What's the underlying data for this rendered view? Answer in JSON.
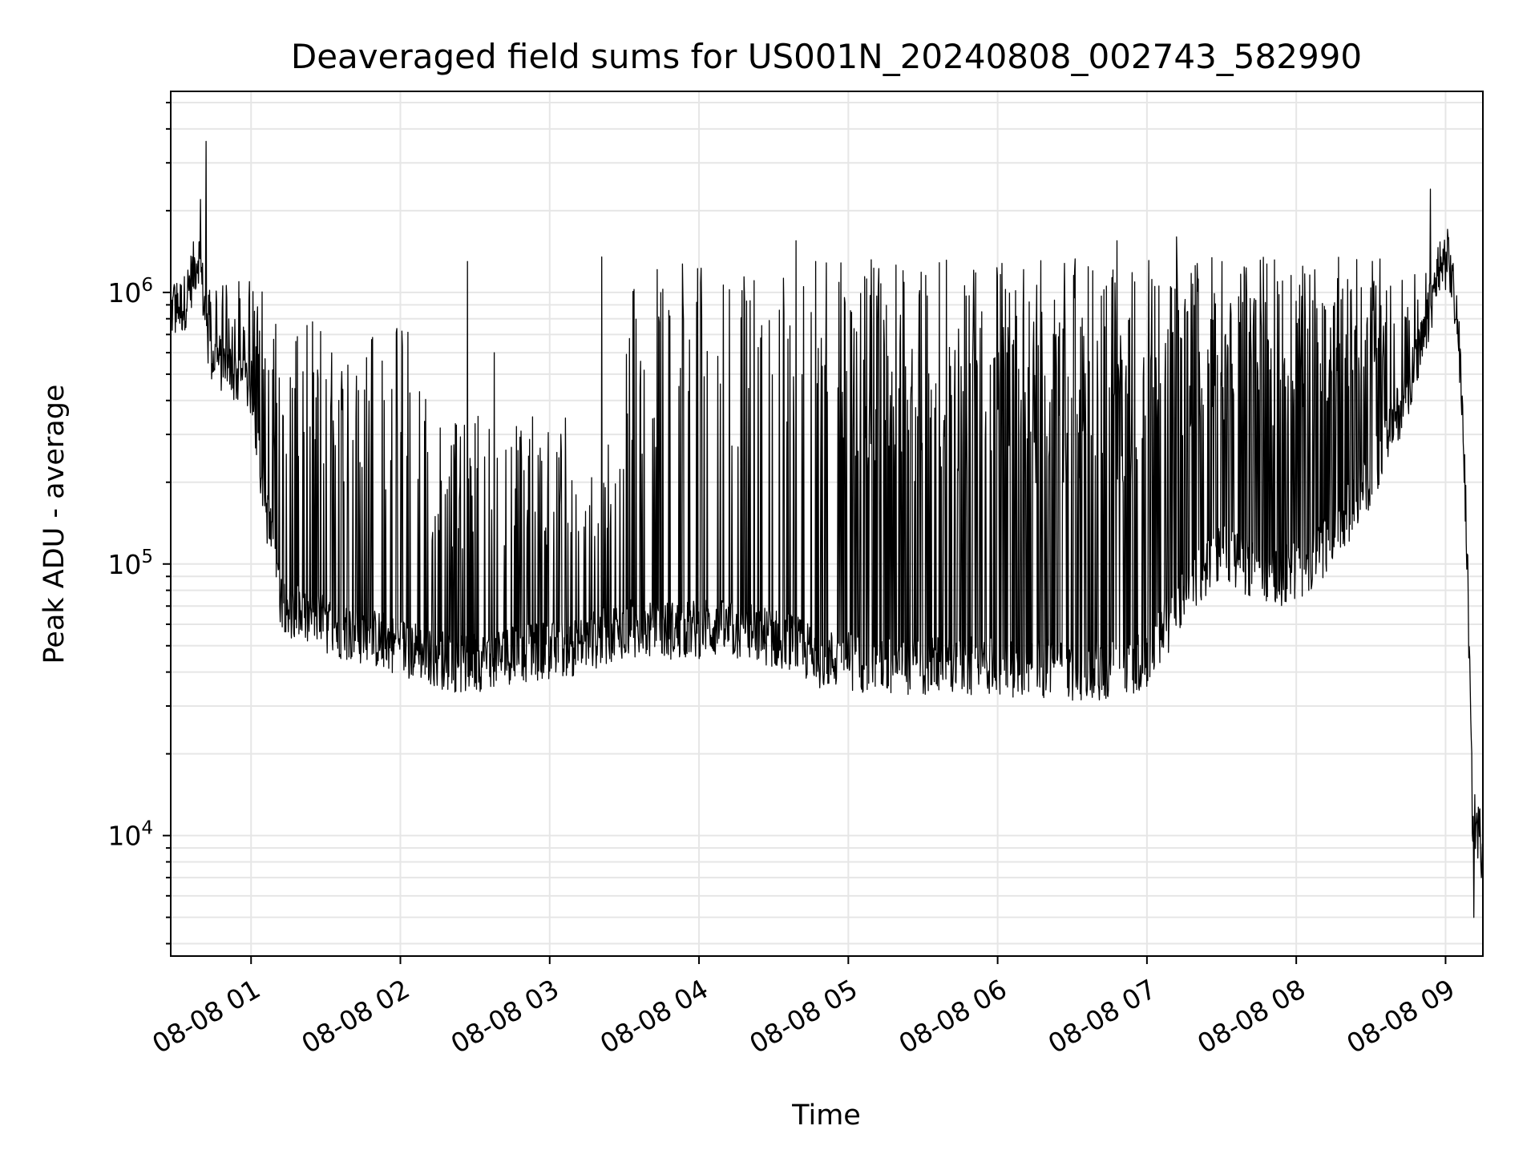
{
  "chart_data": {
    "type": "line",
    "title": "Deaveraged field sums for US001N_20240808_002743_582990",
    "xlabel": "Time",
    "ylabel": "Peak ADU - average",
    "x_tick_labels": [
      "08-08 01",
      "08-08 02",
      "08-08 03",
      "08-08 04",
      "08-08 05",
      "08-08 06",
      "08-08 07",
      "08-08 08",
      "08-08 09"
    ],
    "x_ticks_hours": [
      1,
      2,
      3,
      4,
      5,
      6,
      7,
      8,
      9
    ],
    "xlim_hours": [
      0.4619,
      9.25
    ],
    "y_scale": "log",
    "ylim": [
      3600,
      5500000
    ],
    "y_tick_values": [
      10000,
      100000,
      1000000
    ],
    "y_tick_labels": [
      {
        "base": "10",
        "exp": "4"
      },
      {
        "base": "10",
        "exp": "5"
      },
      {
        "base": "10",
        "exp": "6"
      }
    ],
    "grid": true,
    "line_color": "#000000",
    "grid_color": "#e6e6e6",
    "series": [
      {
        "x_hours_description": "hours after 2024-08-08 00:00",
        "baseline": [
          [
            0.46,
            850000
          ],
          [
            0.55,
            900000
          ],
          [
            0.65,
            1400000
          ],
          [
            0.72,
            600000
          ],
          [
            0.85,
            520000
          ],
          [
            1.0,
            450000
          ],
          [
            1.1,
            160000
          ],
          [
            1.2,
            75000
          ],
          [
            1.3,
            65000
          ],
          [
            1.5,
            60000
          ],
          [
            1.7,
            55000
          ],
          [
            1.9,
            52000
          ],
          [
            2.1,
            48000
          ],
          [
            2.3,
            44000
          ],
          [
            2.45,
            42000
          ],
          [
            2.6,
            45000
          ],
          [
            2.8,
            47000
          ],
          [
            3.0,
            48000
          ],
          [
            3.2,
            50000
          ],
          [
            3.5,
            58000
          ],
          [
            3.8,
            57000
          ],
          [
            4.1,
            58000
          ],
          [
            4.4,
            55000
          ],
          [
            4.6,
            52000
          ],
          [
            4.8,
            45000
          ],
          [
            5.0,
            44000
          ],
          [
            5.3,
            42000
          ],
          [
            5.6,
            42000
          ],
          [
            6.0,
            42000
          ],
          [
            6.3,
            41000
          ],
          [
            6.6,
            40000
          ],
          [
            6.9,
            42000
          ],
          [
            7.0,
            45000
          ],
          [
            7.1,
            55000
          ],
          [
            7.3,
            85000
          ],
          [
            7.5,
            110000
          ],
          [
            7.7,
            95000
          ],
          [
            7.9,
            90000
          ],
          [
            8.1,
            100000
          ],
          [
            8.3,
            140000
          ],
          [
            8.5,
            210000
          ],
          [
            8.7,
            380000
          ],
          [
            8.85,
            650000
          ],
          [
            8.95,
            1200000
          ],
          [
            9.02,
            1350000
          ],
          [
            9.08,
            800000
          ],
          [
            9.12,
            300000
          ],
          [
            9.15,
            80000
          ],
          [
            9.18,
            12000
          ],
          [
            9.2,
            11000
          ],
          [
            9.25,
            9500
          ]
        ],
        "spike_ranges": [
          [
            0.46,
            1.1,
            1100000
          ],
          [
            1.1,
            2.2,
            800000
          ],
          [
            2.2,
            3.5,
            350000
          ],
          [
            3.5,
            4.6,
            1300000
          ],
          [
            4.6,
            7.0,
            1350000
          ],
          [
            7.0,
            8.6,
            1350000
          ],
          [
            8.6,
            9.05,
            1200000
          ]
        ],
        "notable_peaks": [
          [
            0.7,
            3600000
          ],
          [
            0.66,
            2200000
          ],
          [
            8.9,
            2400000
          ],
          [
            3.35,
            1350000
          ],
          [
            4.65,
            1550000
          ],
          [
            6.8,
            1550000
          ],
          [
            7.2,
            1600000
          ],
          [
            2.45,
            1300000
          ],
          [
            2.63,
            600000
          ],
          [
            9.19,
            5000
          ],
          [
            9.24,
            7000
          ]
        ]
      }
    ]
  }
}
